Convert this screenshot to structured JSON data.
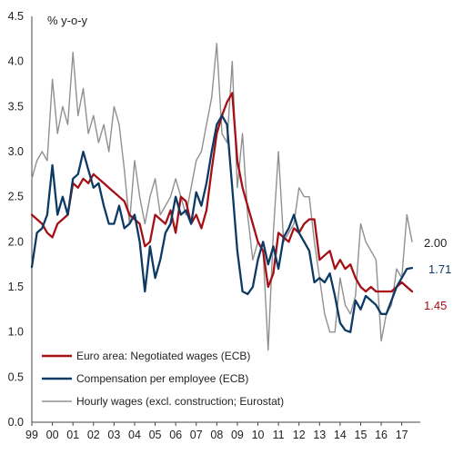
{
  "chart_data": {
    "type": "line",
    "unit_label": "% y-o-y",
    "ylim": [
      0,
      4.5
    ],
    "yticks": [
      "0.0",
      "0.5",
      "1.0",
      "1.5",
      "2.0",
      "2.5",
      "3.0",
      "3.5",
      "4.0",
      "4.5"
    ],
    "xlim": [
      1999.0,
      2017.9
    ],
    "xtick_labels": [
      "99",
      "00",
      "01",
      "02",
      "03",
      "04",
      "05",
      "06",
      "07",
      "08",
      "09",
      "10",
      "11",
      "12",
      "13",
      "14",
      "15",
      "16",
      "17"
    ],
    "grid": false,
    "legend_position": "bottom-left",
    "colors": {
      "negotiated": "#a50f15",
      "compensation": "#0d3a64",
      "hourly": "#909090"
    },
    "end_labels": [
      {
        "series": "hourly",
        "text": "2.00"
      },
      {
        "series": "compensation",
        "text": "1.71"
      },
      {
        "series": "negotiated",
        "text": "1.45"
      }
    ],
    "series": [
      {
        "key": "negotiated",
        "name": "Euro area: Negotiated wages (ECB)",
        "x": [
          1999.0,
          1999.25,
          1999.5,
          1999.75,
          2000.0,
          2000.25,
          2000.5,
          2000.75,
          2001.0,
          2001.25,
          2001.5,
          2001.75,
          2002.0,
          2002.25,
          2002.5,
          2002.75,
          2003.0,
          2003.25,
          2003.5,
          2003.75,
          2004.0,
          2004.25,
          2004.5,
          2004.75,
          2005.0,
          2005.25,
          2005.5,
          2005.75,
          2006.0,
          2006.25,
          2006.5,
          2006.75,
          2007.0,
          2007.25,
          2007.5,
          2007.75,
          2008.0,
          2008.25,
          2008.5,
          2008.75,
          2009.0,
          2009.25,
          2009.5,
          2009.75,
          2010.0,
          2010.25,
          2010.5,
          2010.75,
          2011.0,
          2011.25,
          2011.5,
          2011.75,
          2012.0,
          2012.25,
          2012.5,
          2012.75,
          2013.0,
          2013.25,
          2013.5,
          2013.75,
          2014.0,
          2014.25,
          2014.5,
          2014.75,
          2015.0,
          2015.25,
          2015.5,
          2015.75,
          2016.0,
          2016.25,
          2016.5,
          2016.75,
          2017.0,
          2017.25,
          2017.5
        ],
        "values": [
          2.3,
          2.25,
          2.2,
          2.1,
          2.05,
          2.2,
          2.25,
          2.3,
          2.65,
          2.6,
          2.7,
          2.65,
          2.75,
          2.7,
          2.65,
          2.6,
          2.55,
          2.5,
          2.45,
          2.3,
          2.25,
          2.2,
          1.95,
          2.0,
          2.3,
          2.25,
          2.2,
          2.35,
          2.1,
          2.5,
          2.45,
          2.2,
          2.3,
          2.15,
          2.35,
          2.8,
          3.2,
          3.4,
          3.55,
          3.65,
          2.9,
          2.6,
          2.4,
          2.2,
          2.0,
          1.9,
          1.5,
          1.65,
          2.1,
          2.05,
          2.0,
          2.15,
          2.1,
          2.2,
          2.25,
          2.25,
          1.8,
          1.85,
          1.9,
          1.7,
          1.8,
          1.7,
          1.75,
          1.6,
          1.5,
          1.45,
          1.5,
          1.45,
          1.45,
          1.45,
          1.45,
          1.5,
          1.55,
          1.5,
          1.45
        ]
      },
      {
        "key": "compensation",
        "name": "Compensation per employee (ECB)",
        "x": [
          1999.0,
          1999.25,
          1999.5,
          1999.75,
          2000.0,
          2000.25,
          2000.5,
          2000.75,
          2001.0,
          2001.25,
          2001.5,
          2001.75,
          2002.0,
          2002.25,
          2002.5,
          2002.75,
          2003.0,
          2003.25,
          2003.5,
          2003.75,
          2004.0,
          2004.25,
          2004.5,
          2004.75,
          2005.0,
          2005.25,
          2005.5,
          2005.75,
          2006.0,
          2006.25,
          2006.5,
          2006.75,
          2007.0,
          2007.25,
          2007.5,
          2007.75,
          2008.0,
          2008.25,
          2008.5,
          2008.75,
          2009.0,
          2009.25,
          2009.5,
          2009.75,
          2010.0,
          2010.25,
          2010.5,
          2010.75,
          2011.0,
          2011.25,
          2011.5,
          2011.75,
          2012.0,
          2012.25,
          2012.5,
          2012.75,
          2013.0,
          2013.25,
          2013.5,
          2013.75,
          2014.0,
          2014.25,
          2014.5,
          2014.75,
          2015.0,
          2015.25,
          2015.5,
          2015.75,
          2016.0,
          2016.25,
          2016.5,
          2016.75,
          2017.0,
          2017.25,
          2017.5
        ],
        "values": [
          1.72,
          2.1,
          2.15,
          2.3,
          2.85,
          2.3,
          2.5,
          2.3,
          2.7,
          2.75,
          3.0,
          2.8,
          2.6,
          2.65,
          2.4,
          2.2,
          2.2,
          2.4,
          2.15,
          2.2,
          2.3,
          2.0,
          1.45,
          1.95,
          1.6,
          1.8,
          2.1,
          2.2,
          2.5,
          2.3,
          2.35,
          2.2,
          2.55,
          2.4,
          2.65,
          3.0,
          3.3,
          3.4,
          3.3,
          2.6,
          1.9,
          1.45,
          1.42,
          1.5,
          1.8,
          2.0,
          1.75,
          1.95,
          1.7,
          2.05,
          2.15,
          2.3,
          2.1,
          2.0,
          1.9,
          1.55,
          1.6,
          1.55,
          1.65,
          1.4,
          1.1,
          1.02,
          1.0,
          1.35,
          1.25,
          1.4,
          1.35,
          1.3,
          1.2,
          1.2,
          1.35,
          1.5,
          1.6,
          1.7,
          1.71
        ]
      },
      {
        "key": "hourly",
        "name": "Hourly wages (excl. construction; Eurostat)",
        "x": [
          1999.0,
          1999.25,
          1999.5,
          1999.75,
          2000.0,
          2000.25,
          2000.5,
          2000.75,
          2001.0,
          2001.25,
          2001.5,
          2001.75,
          2002.0,
          2002.25,
          2002.5,
          2002.75,
          2003.0,
          2003.25,
          2003.5,
          2003.75,
          2004.0,
          2004.25,
          2004.5,
          2004.75,
          2005.0,
          2005.25,
          2005.5,
          2005.75,
          2006.0,
          2006.25,
          2006.5,
          2006.75,
          2007.0,
          2007.25,
          2007.5,
          2007.75,
          2008.0,
          2008.25,
          2008.5,
          2008.75,
          2009.0,
          2009.25,
          2009.5,
          2009.75,
          2010.0,
          2010.25,
          2010.5,
          2010.75,
          2011.0,
          2011.25,
          2011.5,
          2011.75,
          2012.0,
          2012.25,
          2012.5,
          2012.75,
          2013.0,
          2013.25,
          2013.5,
          2013.75,
          2014.0,
          2014.25,
          2014.5,
          2014.75,
          2015.0,
          2015.25,
          2015.5,
          2015.75,
          2016.0,
          2016.25,
          2016.5,
          2016.75,
          2017.0,
          2017.25,
          2017.5
        ],
        "values": [
          2.7,
          2.9,
          3.0,
          2.9,
          3.8,
          3.2,
          3.5,
          3.3,
          4.1,
          3.4,
          3.7,
          3.2,
          3.4,
          3.1,
          3.3,
          3.0,
          3.5,
          3.3,
          2.8,
          2.2,
          2.9,
          2.5,
          2.2,
          2.5,
          2.7,
          2.3,
          2.4,
          2.5,
          2.7,
          2.5,
          2.3,
          2.6,
          2.9,
          3.0,
          3.3,
          3.6,
          4.2,
          3.2,
          3.1,
          4.0,
          2.6,
          3.2,
          2.3,
          1.8,
          2.0,
          1.9,
          0.8,
          2.1,
          3.0,
          2.0,
          2.1,
          2.2,
          2.6,
          2.5,
          2.5,
          2.0,
          1.6,
          1.2,
          1.0,
          1.0,
          1.6,
          1.3,
          1.2,
          1.4,
          2.2,
          2.0,
          1.9,
          1.8,
          0.9,
          1.2,
          1.3,
          1.7,
          1.6,
          2.3,
          2.0
        ]
      }
    ]
  }
}
